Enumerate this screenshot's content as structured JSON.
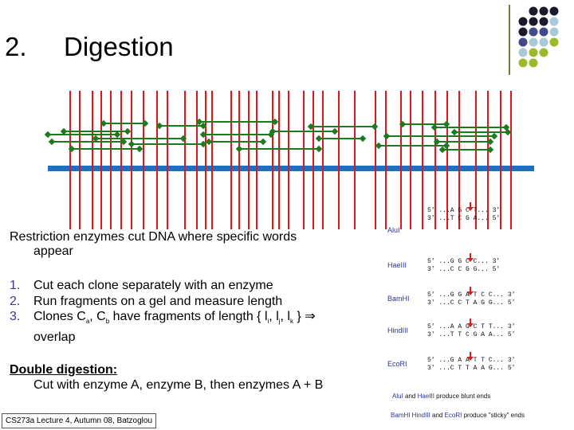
{
  "slide": {
    "number": "2.",
    "title": "Digestion"
  },
  "body": {
    "intro_line1": "Restriction enzymes cut DNA where specific words",
    "intro_line2": "appear",
    "steps": [
      {
        "n": "1.",
        "text": "Cut each clone separately with an enzyme"
      },
      {
        "n": "2.",
        "text": "Run fragments on a gel and measure length"
      },
      {
        "n": "3.",
        "text_line1": "Clones C",
        "sub_a": "a",
        "comma": ", C",
        "sub_b": "b",
        "text_line1_rest": " have fragments of length { l",
        "sub_i": "i",
        "sep1": ", l",
        "sub_j": "j",
        "sep2": ", l",
        "sub_k": "k",
        "close": " } ⇒",
        "text_line2": "overlap"
      }
    ],
    "double_heading": "Double digestion:",
    "double_text": "Cut with enzyme A, enzyme B, then enzymes A + B"
  },
  "footer": "CS273a Lecture 4, Autumn 08, Batzoglou",
  "enzymes": {
    "rows": [
      {
        "name": "AluI",
        "top": "5' ...A G C T... 3'",
        "bottom": "3' ...T C G A... 5'"
      },
      {
        "name": "HaeIII",
        "top": "5' ...G G C C... 3'",
        "bottom": "3' ...C C G G... 5'"
      },
      {
        "name": "BamHI",
        "top": "5' ...G G A T C C... 3'",
        "bottom": "3' ...C C T A G G... 5'"
      },
      {
        "name": "HindIII",
        "top": "5' ...A A G C T T... 3'",
        "bottom": "3' ...T T C G A A... 5'"
      },
      {
        "name": "EcoRI",
        "top": "5' ...G A A T T C... 3'",
        "bottom": "3' ...C T T A A G... 5'"
      }
    ],
    "note1_a": "AluI",
    "note1_and": "and",
    "note1_b": "HaeIII",
    "note1_rest": "produce blunt ends",
    "note2_a": "BamHI",
    "note2_b": "HindIII",
    "note2_and": "and",
    "note2_c": "EcoRI",
    "note2_rest": "produce \"sticky\" ends"
  },
  "colors": {
    "cut_lines": "#e0161e",
    "clones": "#1e7a1e",
    "genome": "#1e6fc0",
    "enzyme_names": "#2a3590"
  }
}
